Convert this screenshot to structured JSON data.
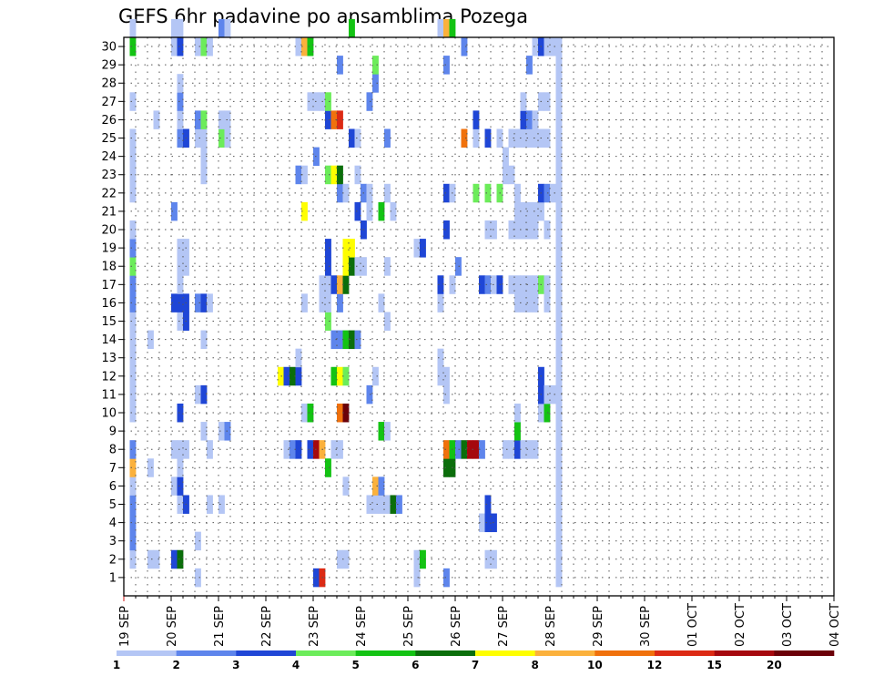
{
  "chart_data": {
    "type": "heatmap",
    "title": "GEFS 6hr padavine po ansamblima Pozega",
    "xlabel": "",
    "ylabel": "",
    "x_ticks": [
      "19 SEP",
      "20 SEP",
      "21 SEP",
      "22 SEP",
      "23 SEP",
      "24 SEP",
      "25 SEP",
      "26 SEP",
      "27 SEP",
      "28 SEP",
      "29 SEP",
      "30 SEP",
      "01 OCT",
      "02 OCT",
      "03 OCT",
      "04 OCT"
    ],
    "y_ticks": [
      "1",
      "2",
      "3",
      "4",
      "5",
      "6",
      "7",
      "8",
      "9",
      "10",
      "11",
      "12",
      "13",
      "14",
      "15",
      "16",
      "17",
      "18",
      "19",
      "20",
      "21",
      "22",
      "23",
      "24",
      "25",
      "26",
      "27",
      "28",
      "29",
      "30"
    ],
    "xlim": [
      0,
      60
    ],
    "ylim": [
      0,
      30
    ],
    "grid": true,
    "legend": {
      "placement": "bottom",
      "boundaries": [
        "1",
        "2",
        "3",
        "4",
        "5",
        "6",
        "7",
        "8",
        "10",
        "12",
        "15",
        "20"
      ],
      "colors": [
        "#b4c6f5",
        "#5e85ec",
        "#1f46d6",
        "#6cec5a",
        "#13c313",
        "#0b6e0b",
        "#fefe00",
        "#fbb13c",
        "#f0710c",
        "#dc2a14",
        "#a5080e",
        "#6b0008"
      ]
    },
    "cells": [
      [
        2,
        1,
        0
      ],
      [
        2,
        2,
        1
      ],
      [
        2,
        3,
        1
      ],
      [
        2,
        4,
        1
      ],
      [
        2,
        5,
        0
      ],
      [
        2,
        6,
        7
      ],
      [
        2,
        7,
        1
      ],
      [
        2,
        9,
        0
      ],
      [
        2,
        10,
        0
      ],
      [
        2,
        11,
        0
      ],
      [
        2,
        12,
        0
      ],
      [
        2,
        13,
        0
      ],
      [
        2,
        14,
        0
      ],
      [
        2,
        15,
        1
      ],
      [
        2,
        16,
        1
      ],
      [
        2,
        17,
        3
      ],
      [
        2,
        18,
        1
      ],
      [
        2,
        19,
        0
      ],
      [
        2,
        21,
        0
      ],
      [
        2,
        22,
        0
      ],
      [
        2,
        23,
        0
      ],
      [
        2,
        24,
        0
      ],
      [
        2,
        26,
        0
      ],
      [
        2,
        29,
        4
      ],
      [
        2,
        30,
        0
      ],
      [
        5,
        1,
        0
      ],
      [
        5,
        6,
        0
      ],
      [
        5,
        13,
        0
      ],
      [
        6,
        1,
        0
      ],
      [
        6,
        25,
        0
      ],
      [
        9,
        1,
        2
      ],
      [
        9,
        5,
        0
      ],
      [
        9,
        7,
        0
      ],
      [
        9,
        15,
        2
      ],
      [
        9,
        20,
        1
      ],
      [
        9,
        29,
        0
      ],
      [
        9,
        30,
        0
      ],
      [
        10,
        1,
        5
      ],
      [
        10,
        4,
        0
      ],
      [
        10,
        5,
        2
      ],
      [
        10,
        6,
        0
      ],
      [
        10,
        7,
        0
      ],
      [
        10,
        9,
        2
      ],
      [
        10,
        14,
        0
      ],
      [
        10,
        15,
        2
      ],
      [
        10,
        16,
        0
      ],
      [
        10,
        17,
        0
      ],
      [
        10,
        18,
        0
      ],
      [
        10,
        24,
        1
      ],
      [
        10,
        25,
        0
      ],
      [
        10,
        26,
        1
      ],
      [
        10,
        27,
        0
      ],
      [
        10,
        29,
        2
      ],
      [
        10,
        30,
        0
      ],
      [
        11,
        4,
        2
      ],
      [
        11,
        7,
        0
      ],
      [
        11,
        14,
        2
      ],
      [
        11,
        15,
        2
      ],
      [
        11,
        17,
        0
      ],
      [
        11,
        18,
        0
      ],
      [
        11,
        24,
        2
      ],
      [
        13,
        0,
        0
      ],
      [
        13,
        2,
        0
      ],
      [
        13,
        10,
        0
      ],
      [
        13,
        15,
        1
      ],
      [
        13,
        24,
        0
      ],
      [
        13,
        25,
        1
      ],
      [
        13,
        29,
        0
      ],
      [
        14,
        8,
        0
      ],
      [
        14,
        10,
        2
      ],
      [
        14,
        13,
        0
      ],
      [
        14,
        15,
        2
      ],
      [
        14,
        22,
        0
      ],
      [
        14,
        23,
        0
      ],
      [
        14,
        24,
        0
      ],
      [
        14,
        25,
        3
      ],
      [
        14,
        29,
        3
      ],
      [
        15,
        4,
        0
      ],
      [
        15,
        7,
        0
      ],
      [
        15,
        15,
        0
      ],
      [
        15,
        29,
        0
      ],
      [
        17,
        4,
        0
      ],
      [
        17,
        8,
        0
      ],
      [
        17,
        24,
        3
      ],
      [
        17,
        25,
        0
      ],
      [
        17,
        30,
        1
      ],
      [
        18,
        8,
        1
      ],
      [
        18,
        24,
        0
      ],
      [
        18,
        25,
        0
      ],
      [
        18,
        30,
        0
      ],
      [
        27,
        11,
        6
      ],
      [
        28,
        7,
        0
      ],
      [
        28,
        11,
        2
      ],
      [
        29,
        7,
        1
      ],
      [
        29,
        11,
        5
      ],
      [
        30,
        7,
        2
      ],
      [
        30,
        11,
        2
      ],
      [
        30,
        12,
        0
      ],
      [
        30,
        22,
        1
      ],
      [
        30,
        29,
        0
      ],
      [
        31,
        9,
        0
      ],
      [
        31,
        15,
        0
      ],
      [
        31,
        20,
        6
      ],
      [
        31,
        22,
        0
      ],
      [
        31,
        29,
        7
      ],
      [
        32,
        7,
        2
      ],
      [
        32,
        9,
        4
      ],
      [
        32,
        26,
        0
      ],
      [
        32,
        29,
        4
      ],
      [
        33,
        0,
        2
      ],
      [
        33,
        7,
        10
      ],
      [
        33,
        23,
        1
      ],
      [
        33,
        26,
        0
      ],
      [
        34,
        0,
        9
      ],
      [
        34,
        7,
        7
      ],
      [
        34,
        15,
        0
      ],
      [
        34,
        16,
        0
      ],
      [
        34,
        26,
        0
      ],
      [
        35,
        6,
        4
      ],
      [
        35,
        14,
        3
      ],
      [
        35,
        15,
        0
      ],
      [
        35,
        16,
        0
      ],
      [
        35,
        17,
        2
      ],
      [
        35,
        18,
        2
      ],
      [
        35,
        22,
        3
      ],
      [
        35,
        25,
        2
      ],
      [
        35,
        26,
        3
      ],
      [
        36,
        7,
        0
      ],
      [
        36,
        11,
        4
      ],
      [
        36,
        13,
        1
      ],
      [
        36,
        16,
        2
      ],
      [
        36,
        22,
        6
      ],
      [
        36,
        25,
        8
      ],
      [
        37,
        1,
        0
      ],
      [
        37,
        7,
        0
      ],
      [
        37,
        9,
        8
      ],
      [
        37,
        11,
        6
      ],
      [
        37,
        13,
        1
      ],
      [
        37,
        15,
        1
      ],
      [
        37,
        16,
        7
      ],
      [
        37,
        21,
        1
      ],
      [
        37,
        22,
        5
      ],
      [
        37,
        25,
        9
      ],
      [
        37,
        28,
        1
      ],
      [
        38,
        1,
        0
      ],
      [
        38,
        5,
        0
      ],
      [
        38,
        9,
        11
      ],
      [
        38,
        11,
        3
      ],
      [
        38,
        13,
        4
      ],
      [
        38,
        16,
        5
      ],
      [
        38,
        17,
        6
      ],
      [
        38,
        18,
        6
      ],
      [
        38,
        21,
        0
      ],
      [
        39,
        13,
        5
      ],
      [
        39,
        17,
        5
      ],
      [
        39,
        18,
        6
      ],
      [
        39,
        24,
        2
      ],
      [
        39,
        30,
        4
      ],
      [
        40,
        13,
        1
      ],
      [
        40,
        17,
        0
      ],
      [
        40,
        20,
        2
      ],
      [
        40,
        22,
        0
      ],
      [
        40,
        24,
        0
      ],
      [
        41,
        17,
        0
      ],
      [
        41,
        19,
        2
      ],
      [
        41,
        21,
        1
      ],
      [
        42,
        4,
        0
      ],
      [
        42,
        10,
        1
      ],
      [
        42,
        20,
        0
      ],
      [
        42,
        21,
        0
      ],
      [
        42,
        26,
        1
      ],
      [
        43,
        4,
        0
      ],
      [
        43,
        5,
        7
      ],
      [
        43,
        11,
        0
      ],
      [
        43,
        27,
        1
      ],
      [
        43,
        28,
        3
      ],
      [
        44,
        4,
        0
      ],
      [
        44,
        5,
        1
      ],
      [
        44,
        8,
        4
      ],
      [
        44,
        15,
        0
      ],
      [
        44,
        20,
        4
      ],
      [
        45,
        4,
        0
      ],
      [
        45,
        8,
        0
      ],
      [
        45,
        14,
        0
      ],
      [
        45,
        17,
        0
      ],
      [
        45,
        21,
        0
      ],
      [
        45,
        24,
        1
      ],
      [
        46,
        4,
        5
      ],
      [
        46,
        20,
        0
      ],
      [
        47,
        4,
        1
      ],
      [
        50,
        0,
        0
      ],
      [
        50,
        1,
        0
      ],
      [
        50,
        18,
        0
      ],
      [
        51,
        1,
        4
      ],
      [
        51,
        18,
        2
      ],
      [
        54,
        11,
        0
      ],
      [
        54,
        12,
        0
      ],
      [
        54,
        15,
        0
      ],
      [
        54,
        16,
        2
      ],
      [
        54,
        30,
        0
      ],
      [
        55,
        0,
        1
      ],
      [
        55,
        6,
        5
      ],
      [
        55,
        7,
        8
      ],
      [
        55,
        10,
        0
      ],
      [
        55,
        11,
        0
      ],
      [
        55,
        19,
        2
      ],
      [
        55,
        21,
        2
      ],
      [
        55,
        28,
        1
      ],
      [
        55,
        30,
        7
      ],
      [
        56,
        6,
        5
      ],
      [
        56,
        7,
        4
      ],
      [
        56,
        16,
        0
      ],
      [
        56,
        21,
        0
      ],
      [
        56,
        30,
        4
      ],
      [
        57,
        7,
        1
      ],
      [
        57,
        17,
        1
      ],
      [
        58,
        7,
        5
      ],
      [
        58,
        24,
        8
      ],
      [
        58,
        29,
        1
      ],
      [
        59,
        7,
        10
      ],
      [
        60,
        7,
        10
      ],
      [
        60,
        21,
        3
      ],
      [
        60,
        24,
        0
      ],
      [
        60,
        25,
        2
      ],
      [
        61,
        3,
        0
      ],
      [
        61,
        7,
        1
      ],
      [
        61,
        16,
        2
      ],
      [
        62,
        1,
        0
      ],
      [
        62,
        3,
        2
      ],
      [
        62,
        4,
        2
      ],
      [
        62,
        16,
        1
      ],
      [
        62,
        19,
        0
      ],
      [
        62,
        21,
        3
      ],
      [
        62,
        24,
        2
      ],
      [
        63,
        1,
        0
      ],
      [
        63,
        3,
        2
      ],
      [
        63,
        16,
        0
      ],
      [
        63,
        19,
        0
      ],
      [
        64,
        16,
        2
      ],
      [
        64,
        21,
        3
      ],
      [
        64,
        24,
        0
      ],
      [
        65,
        7,
        0
      ],
      [
        65,
        22,
        0
      ],
      [
        65,
        23,
        0
      ],
      [
        66,
        7,
        0
      ],
      [
        66,
        16,
        0
      ],
      [
        66,
        19,
        0
      ],
      [
        66,
        22,
        0
      ],
      [
        66,
        24,
        0
      ],
      [
        67,
        7,
        2
      ],
      [
        67,
        8,
        4
      ],
      [
        67,
        9,
        0
      ],
      [
        67,
        15,
        0
      ],
      [
        67,
        16,
        0
      ],
      [
        67,
        19,
        0
      ],
      [
        67,
        20,
        0
      ],
      [
        67,
        21,
        0
      ],
      [
        67,
        24,
        0
      ],
      [
        68,
        7,
        0
      ],
      [
        68,
        15,
        0
      ],
      [
        68,
        16,
        0
      ],
      [
        68,
        19,
        0
      ],
      [
        68,
        20,
        0
      ],
      [
        68,
        24,
        0
      ],
      [
        68,
        25,
        2
      ],
      [
        68,
        26,
        0
      ],
      [
        69,
        7,
        0
      ],
      [
        69,
        15,
        0
      ],
      [
        69,
        16,
        0
      ],
      [
        69,
        19,
        0
      ],
      [
        69,
        20,
        0
      ],
      [
        69,
        24,
        0
      ],
      [
        69,
        25,
        1
      ],
      [
        69,
        28,
        1
      ],
      [
        70,
        7,
        0
      ],
      [
        70,
        15,
        0
      ],
      [
        70,
        16,
        0
      ],
      [
        70,
        19,
        0
      ],
      [
        70,
        20,
        0
      ],
      [
        70,
        24,
        0
      ],
      [
        70,
        25,
        0
      ],
      [
        70,
        29,
        0
      ],
      [
        71,
        9,
        0
      ],
      [
        71,
        10,
        2
      ],
      [
        71,
        11,
        2
      ],
      [
        71,
        16,
        3
      ],
      [
        71,
        20,
        0
      ],
      [
        71,
        21,
        2
      ],
      [
        71,
        24,
        0
      ],
      [
        71,
        26,
        0
      ],
      [
        71,
        29,
        2
      ],
      [
        72,
        9,
        4
      ],
      [
        72,
        10,
        0
      ],
      [
        72,
        15,
        0
      ],
      [
        72,
        16,
        0
      ],
      [
        72,
        19,
        0
      ],
      [
        72,
        21,
        1
      ],
      [
        72,
        24,
        0
      ],
      [
        72,
        26,
        0
      ],
      [
        72,
        29,
        0
      ],
      [
        73,
        10,
        0
      ],
      [
        73,
        21,
        0
      ],
      [
        73,
        29,
        0
      ],
      [
        74,
        0,
        0
      ],
      [
        74,
        1,
        0
      ],
      [
        74,
        2,
        0
      ],
      [
        74,
        3,
        0
      ],
      [
        74,
        4,
        0
      ],
      [
        74,
        5,
        0
      ],
      [
        74,
        6,
        0
      ],
      [
        74,
        7,
        0
      ],
      [
        74,
        8,
        0
      ],
      [
        74,
        9,
        0
      ],
      [
        74,
        10,
        0
      ],
      [
        74,
        11,
        0
      ],
      [
        74,
        12,
        0
      ],
      [
        74,
        13,
        0
      ],
      [
        74,
        14,
        0
      ],
      [
        74,
        15,
        0
      ],
      [
        74,
        16,
        0
      ],
      [
        74,
        17,
        0
      ],
      [
        74,
        18,
        0
      ],
      [
        74,
        19,
        0
      ],
      [
        74,
        20,
        0
      ],
      [
        74,
        21,
        0
      ],
      [
        74,
        22,
        0
      ],
      [
        74,
        23,
        0
      ],
      [
        74,
        24,
        0
      ],
      [
        74,
        25,
        0
      ],
      [
        74,
        26,
        0
      ],
      [
        74,
        27,
        0
      ],
      [
        74,
        28,
        0
      ],
      [
        74,
        29,
        0
      ]
    ]
  }
}
